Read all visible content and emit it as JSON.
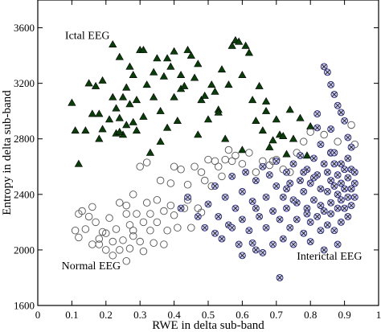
{
  "chart_data": {
    "type": "scatter",
    "xlabel": "RWE in delta sub-band",
    "ylabel": "Entropy in delta sub-band",
    "xlim": [
      0,
      1
    ],
    "ylim": [
      1600,
      3800
    ],
    "x_ticks": [
      "0",
      "0.1",
      "0.2",
      "0.3",
      "0.4",
      "0.5",
      "0.6",
      "0.7",
      "0.8",
      "0.9",
      "1"
    ],
    "y_ticks": [
      "1600",
      "2000",
      "2400",
      "2800",
      "3200",
      "3600"
    ],
    "grid": false,
    "legend": null,
    "annotations": [
      {
        "text": "Ictal EEG",
        "x": 0.08,
        "y": 3520
      },
      {
        "text": "Normal EEG",
        "x": 0.07,
        "y": 1860
      },
      {
        "text": "Interictal EEG",
        "x": 0.76,
        "y": 1930
      }
    ],
    "series": [
      {
        "marker": "filled-triangle",
        "color": "#0b3d0b",
        "points": [
          [
            0.1,
            3060
          ],
          [
            0.11,
            2860
          ],
          [
            0.14,
            2860
          ],
          [
            0.15,
            3200
          ],
          [
            0.16,
            2980
          ],
          [
            0.17,
            3180
          ],
          [
            0.18,
            2800
          ],
          [
            0.18,
            2980
          ],
          [
            0.19,
            3220
          ],
          [
            0.19,
            2870
          ],
          [
            0.21,
            2940
          ],
          [
            0.22,
            3100
          ],
          [
            0.22,
            3480
          ],
          [
            0.23,
            2840
          ],
          [
            0.23,
            3020
          ],
          [
            0.24,
            3390
          ],
          [
            0.24,
            2950
          ],
          [
            0.25,
            2830
          ],
          [
            0.25,
            3100
          ],
          [
            0.26,
            3170
          ],
          [
            0.26,
            2900
          ],
          [
            0.27,
            3320
          ],
          [
            0.27,
            3050
          ],
          [
            0.28,
            3260
          ],
          [
            0.28,
            2920
          ],
          [
            0.29,
            2860
          ],
          [
            0.29,
            3080
          ],
          [
            0.3,
            3440
          ],
          [
            0.31,
            3440
          ],
          [
            0.31,
            2960
          ],
          [
            0.32,
            3190
          ],
          [
            0.33,
            2700
          ],
          [
            0.34,
            3100
          ],
          [
            0.35,
            3380
          ],
          [
            0.36,
            3000
          ],
          [
            0.36,
            2780
          ],
          [
            0.37,
            3250
          ],
          [
            0.38,
            3380
          ],
          [
            0.38,
            2880
          ],
          [
            0.39,
            3320
          ],
          [
            0.4,
            3430
          ],
          [
            0.4,
            3100
          ],
          [
            0.41,
            2930
          ],
          [
            0.42,
            3160
          ],
          [
            0.43,
            3180
          ],
          [
            0.44,
            3440
          ],
          [
            0.45,
            3400
          ],
          [
            0.46,
            3240
          ],
          [
            0.47,
            3340
          ],
          [
            0.47,
            2830
          ],
          [
            0.48,
            3080
          ],
          [
            0.49,
            3110
          ],
          [
            0.5,
            2940
          ],
          [
            0.51,
            3190
          ],
          [
            0.52,
            3140
          ],
          [
            0.53,
            3010
          ],
          [
            0.54,
            3300
          ],
          [
            0.55,
            2800
          ],
          [
            0.56,
            3190
          ],
          [
            0.57,
            3470
          ],
          [
            0.58,
            3510
          ],
          [
            0.59,
            3500
          ],
          [
            0.6,
            3260
          ],
          [
            0.6,
            2720
          ],
          [
            0.61,
            3470
          ],
          [
            0.62,
            3420
          ],
          [
            0.63,
            3080
          ],
          [
            0.64,
            2930
          ],
          [
            0.65,
            3180
          ],
          [
            0.66,
            2860
          ],
          [
            0.67,
            3000
          ],
          [
            0.68,
            2740
          ],
          [
            0.69,
            2790
          ],
          [
            0.7,
            2940
          ],
          [
            0.71,
            2830
          ],
          [
            0.72,
            2820
          ],
          [
            0.73,
            2690
          ],
          [
            0.74,
            3010
          ],
          [
            0.75,
            2800
          ],
          [
            0.77,
            2950
          ],
          [
            0.79,
            2680
          ],
          [
            0.8,
            2890
          ],
          [
            0.12,
            2620
          ],
          [
            0.24,
            2850
          ],
          [
            0.34,
            3280
          ],
          [
            0.42,
            3260
          ],
          [
            0.53,
            2990
          ],
          [
            0.67,
            3070
          ]
        ]
      },
      {
        "marker": "hollow-circle",
        "color": "#555555",
        "points": [
          [
            0.11,
            2140
          ],
          [
            0.12,
            2260
          ],
          [
            0.12,
            2090
          ],
          [
            0.13,
            2280
          ],
          [
            0.14,
            2150
          ],
          [
            0.15,
            2240
          ],
          [
            0.16,
            2040
          ],
          [
            0.16,
            2310
          ],
          [
            0.17,
            2200
          ],
          [
            0.18,
            2080
          ],
          [
            0.19,
            2130
          ],
          [
            0.2,
            2000
          ],
          [
            0.2,
            2120
          ],
          [
            0.21,
            2230
          ],
          [
            0.22,
            1960
          ],
          [
            0.22,
            2060
          ],
          [
            0.23,
            2150
          ],
          [
            0.24,
            2340
          ],
          [
            0.24,
            2000
          ],
          [
            0.25,
            2070
          ],
          [
            0.26,
            1920
          ],
          [
            0.26,
            2260
          ],
          [
            0.27,
            2010
          ],
          [
            0.27,
            2180
          ],
          [
            0.28,
            2400
          ],
          [
            0.28,
            2100
          ],
          [
            0.29,
            2260
          ],
          [
            0.3,
            2060
          ],
          [
            0.3,
            2600
          ],
          [
            0.31,
            2200
          ],
          [
            0.31,
            1990
          ],
          [
            0.32,
            2340
          ],
          [
            0.32,
            2630
          ],
          [
            0.33,
            2140
          ],
          [
            0.33,
            2260
          ],
          [
            0.34,
            2050
          ],
          [
            0.35,
            2360
          ],
          [
            0.35,
            2200
          ],
          [
            0.36,
            2500
          ],
          [
            0.37,
            2280
          ],
          [
            0.37,
            2040
          ],
          [
            0.38,
            2140
          ],
          [
            0.39,
            2320
          ],
          [
            0.39,
            2480
          ],
          [
            0.4,
            2250
          ],
          [
            0.41,
            2160
          ],
          [
            0.42,
            2580
          ],
          [
            0.43,
            2300
          ],
          [
            0.44,
            2470
          ],
          [
            0.45,
            2160
          ],
          [
            0.46,
            2600
          ],
          [
            0.47,
            2300
          ],
          [
            0.48,
            2560
          ],
          [
            0.49,
            2500
          ],
          [
            0.5,
            2650
          ],
          [
            0.51,
            2460
          ],
          [
            0.52,
            2640
          ],
          [
            0.53,
            2600
          ],
          [
            0.54,
            2530
          ],
          [
            0.55,
            2650
          ],
          [
            0.56,
            2720
          ],
          [
            0.58,
            2680
          ],
          [
            0.6,
            2620
          ],
          [
            0.62,
            2700
          ],
          [
            0.64,
            2560
          ],
          [
            0.66,
            2640
          ],
          [
            0.68,
            2610
          ],
          [
            0.7,
            2650
          ],
          [
            0.72,
            2580
          ],
          [
            0.74,
            2560
          ],
          [
            0.76,
            2700
          ],
          [
            0.78,
            2780
          ],
          [
            0.8,
            2850
          ],
          [
            0.84,
            2830
          ],
          [
            0.86,
            2700
          ],
          [
            0.88,
            2780
          ],
          [
            0.92,
            2900
          ],
          [
            0.93,
            2760
          ],
          [
            0.18,
            2040
          ],
          [
            0.28,
            2140
          ],
          [
            0.4,
            2600
          ],
          [
            0.48,
            2270
          ],
          [
            0.57,
            2640
          ],
          [
            0.69,
            2640
          ],
          [
            0.26,
            2320
          ],
          [
            0.44,
            2360
          ]
        ]
      },
      {
        "marker": "crossed-circle",
        "color": "#2a2a7a",
        "points": [
          [
            0.44,
            2380
          ],
          [
            0.47,
            2240
          ],
          [
            0.49,
            2160
          ],
          [
            0.5,
            2330
          ],
          [
            0.52,
            2460
          ],
          [
            0.53,
            2240
          ],
          [
            0.54,
            2080
          ],
          [
            0.55,
            2380
          ],
          [
            0.56,
            2180
          ],
          [
            0.57,
            2530
          ],
          [
            0.58,
            2300
          ],
          [
            0.59,
            2040
          ],
          [
            0.6,
            2420
          ],
          [
            0.6,
            2220
          ],
          [
            0.61,
            2560
          ],
          [
            0.62,
            2140
          ],
          [
            0.63,
            2350
          ],
          [
            0.63,
            2050
          ],
          [
            0.64,
            2500
          ],
          [
            0.65,
            2240
          ],
          [
            0.66,
            2600
          ],
          [
            0.66,
            1980
          ],
          [
            0.67,
            2380
          ],
          [
            0.67,
            2160
          ],
          [
            0.68,
            2540
          ],
          [
            0.69,
            2040
          ],
          [
            0.69,
            2280
          ],
          [
            0.7,
            2460
          ],
          [
            0.7,
            2640
          ],
          [
            0.71,
            2220
          ],
          [
            0.71,
            1800
          ],
          [
            0.72,
            2380
          ],
          [
            0.72,
            2080
          ],
          [
            0.73,
            2560
          ],
          [
            0.73,
            2300
          ],
          [
            0.74,
            2160
          ],
          [
            0.74,
            2480
          ],
          [
            0.75,
            2620
          ],
          [
            0.75,
            2040
          ],
          [
            0.76,
            2340
          ],
          [
            0.76,
            2220
          ],
          [
            0.77,
            2500
          ],
          [
            0.77,
            2680
          ],
          [
            0.78,
            2120
          ],
          [
            0.78,
            2420
          ],
          [
            0.79,
            2300
          ],
          [
            0.79,
            2580
          ],
          [
            0.8,
            2200
          ],
          [
            0.8,
            2060
          ],
          [
            0.8,
            2480
          ],
          [
            0.81,
            2360
          ],
          [
            0.81,
            2660
          ],
          [
            0.82,
            2240
          ],
          [
            0.82,
            2540
          ],
          [
            0.82,
            2880
          ],
          [
            0.83,
            2320
          ],
          [
            0.83,
            2140
          ],
          [
            0.83,
            2440
          ],
          [
            0.84,
            2620
          ],
          [
            0.84,
            2280
          ],
          [
            0.84,
            2000
          ],
          [
            0.85,
            2420
          ],
          [
            0.85,
            2180
          ],
          [
            0.85,
            2560
          ],
          [
            0.86,
            2340
          ],
          [
            0.86,
            2500
          ],
          [
            0.86,
            2700
          ],
          [
            0.86,
            2260
          ],
          [
            0.87,
            2460
          ],
          [
            0.87,
            2140
          ],
          [
            0.87,
            2620
          ],
          [
            0.88,
            2400
          ],
          [
            0.88,
            2300
          ],
          [
            0.88,
            2540
          ],
          [
            0.88,
            2040
          ],
          [
            0.89,
            2480
          ],
          [
            0.89,
            2360
          ],
          [
            0.89,
            2200
          ],
          [
            0.9,
            2440
          ],
          [
            0.9,
            2580
          ],
          [
            0.9,
            2300
          ],
          [
            0.91,
            2520
          ],
          [
            0.91,
            2380
          ],
          [
            0.91,
            2660
          ],
          [
            0.92,
            2440
          ],
          [
            0.92,
            2320
          ],
          [
            0.92,
            2580
          ],
          [
            0.93,
            2480
          ],
          [
            0.93,
            2380
          ],
          [
            0.84,
            3320
          ],
          [
            0.85,
            3280
          ],
          [
            0.86,
            3190
          ],
          [
            0.87,
            3120
          ],
          [
            0.88,
            3040
          ],
          [
            0.89,
            2990
          ],
          [
            0.9,
            2930
          ],
          [
            0.91,
            2810
          ],
          [
            0.92,
            2740
          ],
          [
            0.82,
            2980
          ],
          [
            0.86,
            2870
          ],
          [
            0.89,
            2620
          ],
          [
            0.91,
            2240
          ],
          [
            0.93,
            2560
          ],
          [
            0.83,
            2760
          ],
          [
            0.75,
            2360
          ],
          [
            0.78,
            2560
          ],
          [
            0.57,
            2160
          ],
          [
            0.64,
            2300
          ],
          [
            0.73,
            2440
          ],
          [
            0.87,
            2700
          ],
          [
            0.81,
            2520
          ],
          [
            0.79,
            2260
          ],
          [
            0.64,
            2000
          ],
          [
            0.6,
            1960
          ],
          [
            0.52,
            2120
          ],
          [
            0.42,
            2300
          ]
        ]
      }
    ]
  }
}
